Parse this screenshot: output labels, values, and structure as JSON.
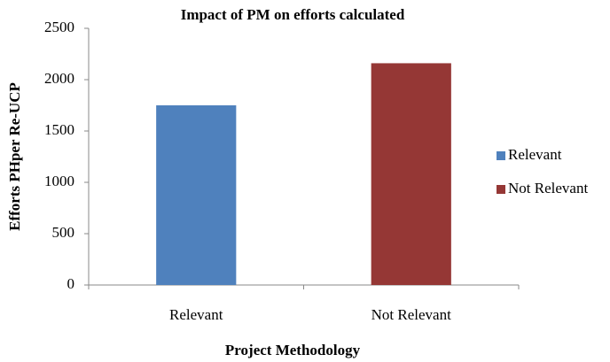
{
  "chart_data": {
    "type": "bar",
    "title": "Impact of PM on efforts calculated",
    "x_label": "Project Methodology",
    "y_label": "Efforts PHper Re-UCP",
    "categories": [
      "Relevant",
      "Not Relevant"
    ],
    "series": [
      {
        "name": "Relevant",
        "color": "#4f81bd",
        "values": [
          1750,
          null
        ]
      },
      {
        "name": "Not Relevant",
        "color": "#953735",
        "values": [
          null,
          2160
        ]
      }
    ],
    "ylim": [
      0,
      2500
    ],
    "yticks": [
      0,
      500,
      1000,
      1500,
      2000,
      2500
    ],
    "grid": false,
    "legend": "right"
  }
}
